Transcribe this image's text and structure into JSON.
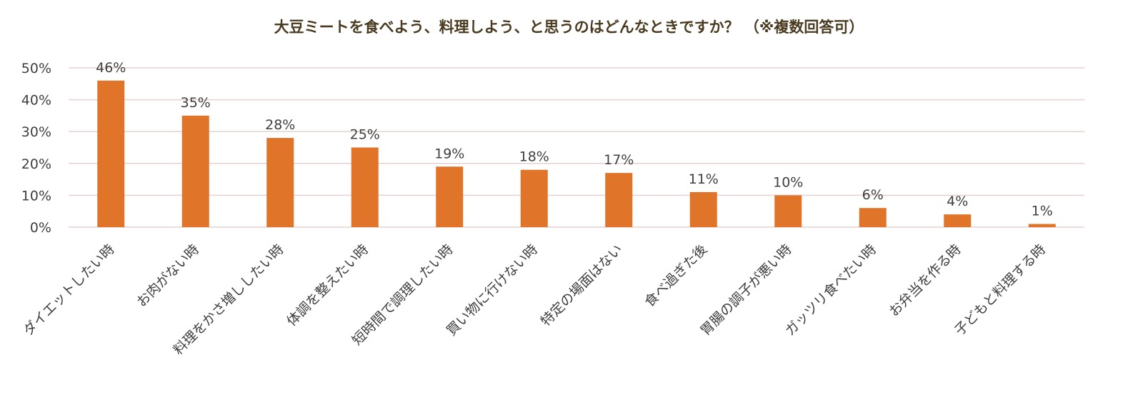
{
  "chart_data": {
    "type": "bar",
    "title": "大豆ミートを食べよう、料理しよう、と思うのはどんなときですか？ （※複数回答可）",
    "categories": [
      "ダイエットしたい時",
      "お肉がない時",
      "料理をかさ増ししたい時",
      "体調を整えたい時",
      "短時間で調理したい時",
      "買い物に行けない時",
      "特定の場面はない",
      "食べ過ぎた後",
      "胃腸の調子が悪い時",
      "ガッツリ食べたい時",
      "お弁当を作る時",
      "子どもと料理する時"
    ],
    "values": [
      46,
      35,
      28,
      25,
      19,
      18,
      17,
      11,
      10,
      6,
      4,
      1
    ],
    "data_labels": [
      "46%",
      "35%",
      "28%",
      "25%",
      "19%",
      "18%",
      "17%",
      "11%",
      "10%",
      "6%",
      "4%",
      "1%"
    ],
    "y_ticks": [
      0,
      10,
      20,
      30,
      40,
      50
    ],
    "y_tick_labels": [
      "0%",
      "10%",
      "20%",
      "30%",
      "40%",
      "50%"
    ],
    "ylim": [
      0,
      50
    ],
    "xlabel": "",
    "ylabel": "",
    "grid": true,
    "legend": "none",
    "colors": {
      "bar": "#e07428",
      "grid": "#e6d2d2",
      "title": "#4a3b20",
      "text": "#404040"
    }
  }
}
